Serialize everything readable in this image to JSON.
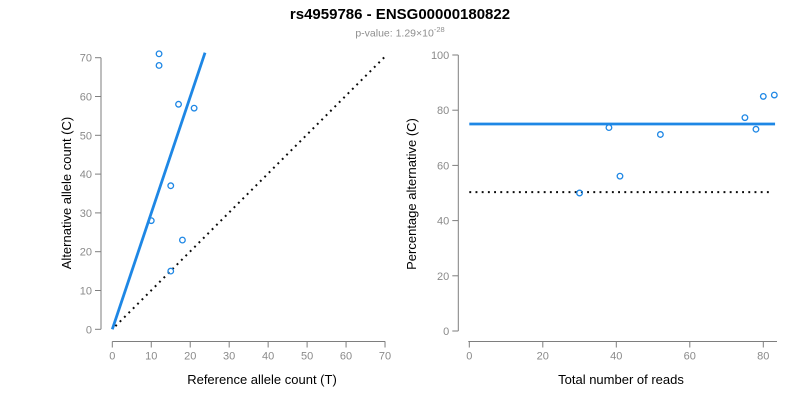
{
  "header": {
    "title": "rs4959786 - ENSG00000180822",
    "pvalue_prefix": "p-value: 1.29×10",
    "pvalue_exponent": "-28"
  },
  "colors": {
    "accent_blue": "#1E87E5",
    "axis_line_gray": "#7E7E7E",
    "tick_label_gray": "#8A8A8A",
    "axis_title_black": "#000000",
    "dotted_line_black": "#0A0A0A",
    "subtitle_gray": "#8E8E8E"
  },
  "chart_data": [
    {
      "id": "allele-counts-scatter",
      "type": "scatter",
      "xlabel": "Reference allele count (T)",
      "ylabel": "Alternative allele count (C)",
      "xlim": [
        0,
        70
      ],
      "ylim": [
        0,
        70
      ],
      "xticks": [
        0,
        10,
        20,
        30,
        40,
        50,
        60,
        70
      ],
      "yticks": [
        0,
        10,
        20,
        30,
        40,
        50,
        60,
        70
      ],
      "grid": false,
      "legend": null,
      "points": [
        [
          12,
          71
        ],
        [
          12,
          68
        ],
        [
          17,
          58
        ],
        [
          21,
          57
        ],
        [
          15,
          37
        ],
        [
          10,
          28
        ],
        [
          18,
          23
        ],
        [
          15,
          15
        ]
      ],
      "lines": [
        {
          "name": "fit-line",
          "style": "solid",
          "color": "blue",
          "x1": 0,
          "y1": 0,
          "x2": 23.8,
          "y2": 71.3
        },
        {
          "name": "identity-line",
          "style": "dotted",
          "color": "black",
          "x1": 0.8,
          "y1": 0.8,
          "x2": 70.3,
          "y2": 70.6
        }
      ]
    },
    {
      "id": "percentage-vs-reads-scatter",
      "type": "scatter",
      "xlabel": "Total number of reads",
      "ylabel": "Percentage alternative (C)",
      "xlim": [
        0,
        84
      ],
      "ylim": [
        0,
        100
      ],
      "xticks": [
        0,
        20,
        40,
        60,
        80
      ],
      "yticks": [
        0,
        20,
        40,
        60,
        80,
        100
      ],
      "grid": false,
      "legend": null,
      "points": [
        [
          83,
          85.5
        ],
        [
          80,
          85.0
        ],
        [
          75,
          77.3
        ],
        [
          78,
          73.1
        ],
        [
          52,
          71.2
        ],
        [
          38,
          73.7
        ],
        [
          41,
          56.1
        ],
        [
          30,
          50.0
        ]
      ],
      "lines": [
        {
          "name": "mean-percentage-line",
          "style": "solid",
          "color": "blue",
          "x1": 0,
          "y1": 75,
          "x2": 83.2,
          "y2": 75
        },
        {
          "name": "fifty-percent-line",
          "style": "dotted",
          "color": "black",
          "x1": 0,
          "y1": 50.3,
          "x2": 81.7,
          "y2": 50.3
        }
      ]
    }
  ]
}
